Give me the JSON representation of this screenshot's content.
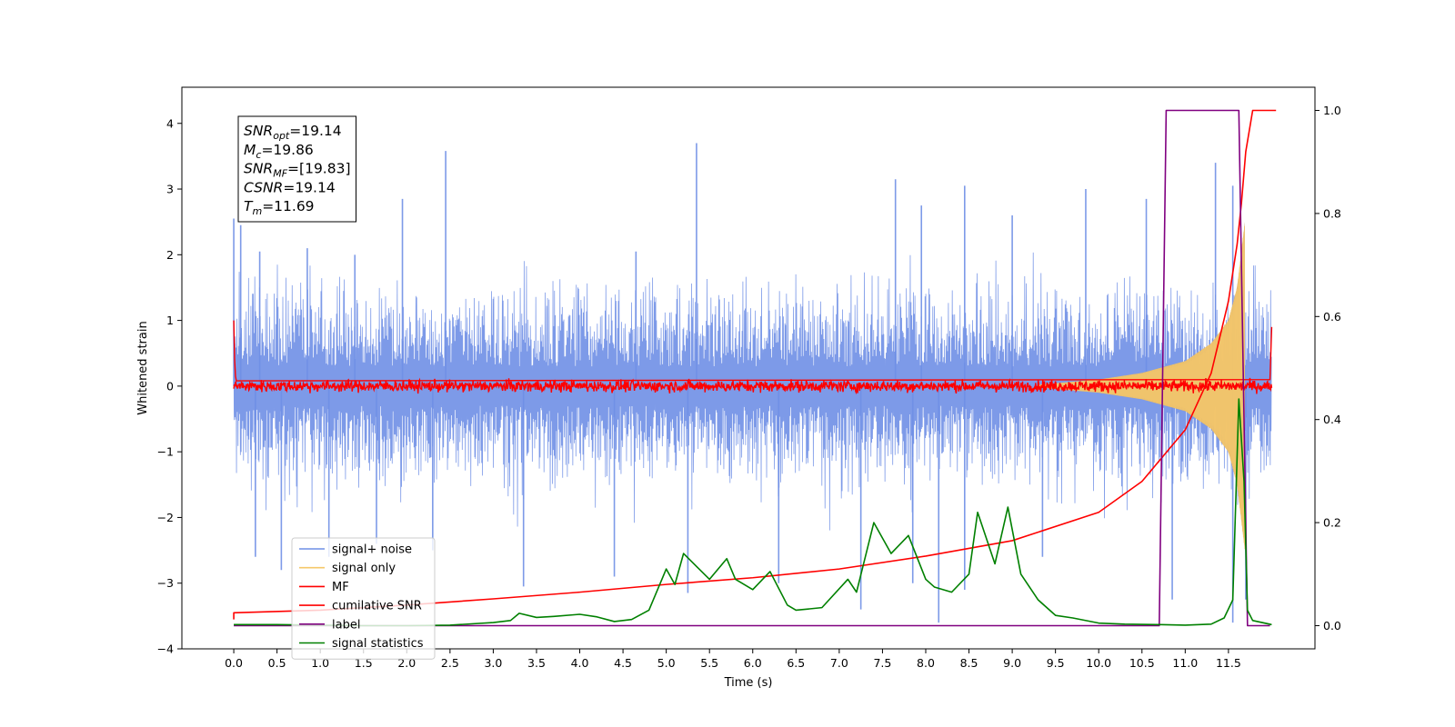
{
  "chart_data": {
    "type": "line",
    "xlabel": "Time (s)",
    "ylabel": "Whitened strain",
    "xlim": [
      -0.6,
      12.5
    ],
    "ylim": [
      -4,
      4.55
    ],
    "y2lim": [
      -0.045,
      1.045
    ],
    "xticks": [
      0.0,
      0.5,
      1.0,
      1.5,
      2.0,
      2.5,
      3.0,
      3.5,
      4.0,
      4.5,
      5.0,
      5.5,
      6.0,
      6.5,
      7.0,
      7.5,
      8.0,
      8.5,
      9.0,
      9.5,
      10.0,
      10.5,
      11.0,
      11.5
    ],
    "xtick_labels": [
      "0.0",
      "0.5",
      "1.0",
      "1.5",
      "2.0",
      "2.5",
      "3.0",
      "3.5",
      "4.0",
      "4.5",
      "5.0",
      "5.5",
      "6.0",
      "6.5",
      "7.0",
      "7.5",
      "8.0",
      "8.5",
      "9.0",
      "9.5",
      "10.0",
      "10.5",
      "11.0",
      "11.5"
    ],
    "yticks": [
      -4,
      -3,
      -2,
      -1,
      0,
      1,
      2,
      3,
      4
    ],
    "ytick_labels": [
      "−4",
      "−3",
      "−2",
      "−1",
      "0",
      "1",
      "2",
      "3",
      "4"
    ],
    "y2ticks": [
      0.0,
      0.2,
      0.4,
      0.6,
      0.8,
      1.0
    ],
    "y2tick_labels": [
      "0.0",
      "0.2",
      "0.4",
      "0.6",
      "0.8",
      "1.0"
    ],
    "stats_box": [
      {
        "base": "SNR",
        "sub": "opt",
        "value": "=19.14"
      },
      {
        "base": "M",
        "sub": "c",
        "value": "=19.86"
      },
      {
        "base": "SNR",
        "sub": "MF",
        "value": "=[19.83]"
      },
      {
        "base": "CSNR",
        "sub": "",
        "value": "=19.14"
      },
      {
        "base": "T",
        "sub": "m",
        "value": "=11.69"
      }
    ],
    "legend_location": "lower-left",
    "series": [
      {
        "name": "signal+ noise",
        "axis": "left",
        "color": "#6f8fe6",
        "kind": "noise",
        "x_range": [
          0.0,
          12.0
        ],
        "typical_envelope": [
          -1.6,
          1.6
        ],
        "peaks_high": [
          [
            0.0,
            2.55
          ],
          [
            0.08,
            2.45
          ],
          [
            0.3,
            2.05
          ],
          [
            0.85,
            2.1
          ],
          [
            1.4,
            2.0
          ],
          [
            1.95,
            2.85
          ],
          [
            2.45,
            3.58
          ],
          [
            4.65,
            2.05
          ],
          [
            5.35,
            3.7
          ],
          [
            7.65,
            3.15
          ],
          [
            7.95,
            2.75
          ],
          [
            8.45,
            3.05
          ],
          [
            9.0,
            2.6
          ],
          [
            9.85,
            3.0
          ],
          [
            10.55,
            2.85
          ],
          [
            11.35,
            3.4
          ],
          [
            11.55,
            3.05
          ]
        ],
        "peaks_low": [
          [
            0.25,
            -2.6
          ],
          [
            0.55,
            -2.8
          ],
          [
            1.1,
            -2.6
          ],
          [
            1.65,
            -2.4
          ],
          [
            2.3,
            -2.5
          ],
          [
            3.35,
            -3.05
          ],
          [
            4.4,
            -2.9
          ],
          [
            5.25,
            -3.15
          ],
          [
            6.3,
            -3.0
          ],
          [
            7.25,
            -3.4
          ],
          [
            7.85,
            -3.0
          ],
          [
            8.15,
            -3.6
          ],
          [
            8.45,
            -3.1
          ],
          [
            9.35,
            -2.6
          ],
          [
            10.85,
            -3.25
          ],
          [
            11.55,
            -3.6
          ],
          [
            11.7,
            -3.25
          ]
        ]
      },
      {
        "name": "signal only",
        "axis": "left",
        "color": "#f5c86a",
        "kind": "chirp",
        "x_range": [
          9.3,
          11.69
        ],
        "amplitude": [
          [
            9.3,
            0.02
          ],
          [
            10.0,
            0.1
          ],
          [
            10.5,
            0.2
          ],
          [
            11.0,
            0.38
          ],
          [
            11.3,
            0.65
          ],
          [
            11.5,
            1.0
          ],
          [
            11.6,
            1.5
          ],
          [
            11.69,
            2.5
          ]
        ]
      },
      {
        "name": "MF",
        "axis": "left",
        "color": "#ff0000",
        "kind": "noise",
        "x_range": [
          0.0,
          12.0
        ],
        "typical_envelope": [
          -0.1,
          0.1
        ],
        "points": [
          [
            0.0,
            1.0
          ],
          [
            0.01,
            0.4
          ],
          [
            0.02,
            0.15
          ],
          [
            0.03,
            0.08
          ],
          [
            11.98,
            0.1
          ],
          [
            12.0,
            0.9
          ]
        ]
      },
      {
        "name": "cumilative SNR",
        "axis": "right",
        "color": "#ff0000",
        "kind": "line",
        "points": [
          [
            0.0,
            0.012
          ],
          [
            0.0,
            0.025
          ],
          [
            1.0,
            0.03
          ],
          [
            2.0,
            0.04
          ],
          [
            3.0,
            0.052
          ],
          [
            4.0,
            0.065
          ],
          [
            5.0,
            0.08
          ],
          [
            6.0,
            0.093
          ],
          [
            7.0,
            0.11
          ],
          [
            8.0,
            0.135
          ],
          [
            9.0,
            0.165
          ],
          [
            10.0,
            0.22
          ],
          [
            10.5,
            0.28
          ],
          [
            11.0,
            0.38
          ],
          [
            11.3,
            0.49
          ],
          [
            11.5,
            0.63
          ],
          [
            11.6,
            0.74
          ],
          [
            11.65,
            0.82
          ],
          [
            11.7,
            0.92
          ],
          [
            11.78,
            1.0
          ],
          [
            12.05,
            1.0
          ]
        ]
      },
      {
        "name": "label",
        "axis": "right",
        "color": "#800080",
        "kind": "line",
        "points": [
          [
            0.0,
            0.0
          ],
          [
            10.7,
            0.0
          ],
          [
            10.78,
            1.0
          ],
          [
            11.62,
            1.0
          ],
          [
            11.72,
            0.0
          ],
          [
            11.98,
            0.0
          ]
        ]
      },
      {
        "name": "signal statistics",
        "axis": "right",
        "color": "#008000",
        "kind": "line",
        "points": [
          [
            0.0,
            0.002
          ],
          [
            0.5,
            0.002
          ],
          [
            1.0,
            0.001
          ],
          [
            1.5,
            0.0
          ],
          [
            2.0,
            0.0
          ],
          [
            2.5,
            0.001
          ],
          [
            3.0,
            0.006
          ],
          [
            3.2,
            0.01
          ],
          [
            3.3,
            0.024
          ],
          [
            3.5,
            0.016
          ],
          [
            3.7,
            0.018
          ],
          [
            4.0,
            0.022
          ],
          [
            4.2,
            0.017
          ],
          [
            4.4,
            0.008
          ],
          [
            4.6,
            0.012
          ],
          [
            4.8,
            0.03
          ],
          [
            5.0,
            0.11
          ],
          [
            5.1,
            0.08
          ],
          [
            5.2,
            0.14
          ],
          [
            5.35,
            0.115
          ],
          [
            5.5,
            0.09
          ],
          [
            5.7,
            0.13
          ],
          [
            5.8,
            0.09
          ],
          [
            6.0,
            0.07
          ],
          [
            6.2,
            0.105
          ],
          [
            6.4,
            0.04
          ],
          [
            6.5,
            0.03
          ],
          [
            6.8,
            0.035
          ],
          [
            7.1,
            0.09
          ],
          [
            7.2,
            0.065
          ],
          [
            7.4,
            0.2
          ],
          [
            7.6,
            0.14
          ],
          [
            7.8,
            0.175
          ],
          [
            8.0,
            0.09
          ],
          [
            8.1,
            0.075
          ],
          [
            8.3,
            0.065
          ],
          [
            8.5,
            0.1
          ],
          [
            8.6,
            0.22
          ],
          [
            8.8,
            0.12
          ],
          [
            8.95,
            0.23
          ],
          [
            9.1,
            0.1
          ],
          [
            9.3,
            0.05
          ],
          [
            9.5,
            0.02
          ],
          [
            9.7,
            0.015
          ],
          [
            10.0,
            0.005
          ],
          [
            10.3,
            0.003
          ],
          [
            10.7,
            0.002
          ],
          [
            11.0,
            0.001
          ],
          [
            11.3,
            0.003
          ],
          [
            11.45,
            0.015
          ],
          [
            11.55,
            0.05
          ],
          [
            11.62,
            0.44
          ],
          [
            11.68,
            0.28
          ],
          [
            11.72,
            0.03
          ],
          [
            11.78,
            0.01
          ],
          [
            12.0,
            0.002
          ]
        ]
      }
    ]
  }
}
